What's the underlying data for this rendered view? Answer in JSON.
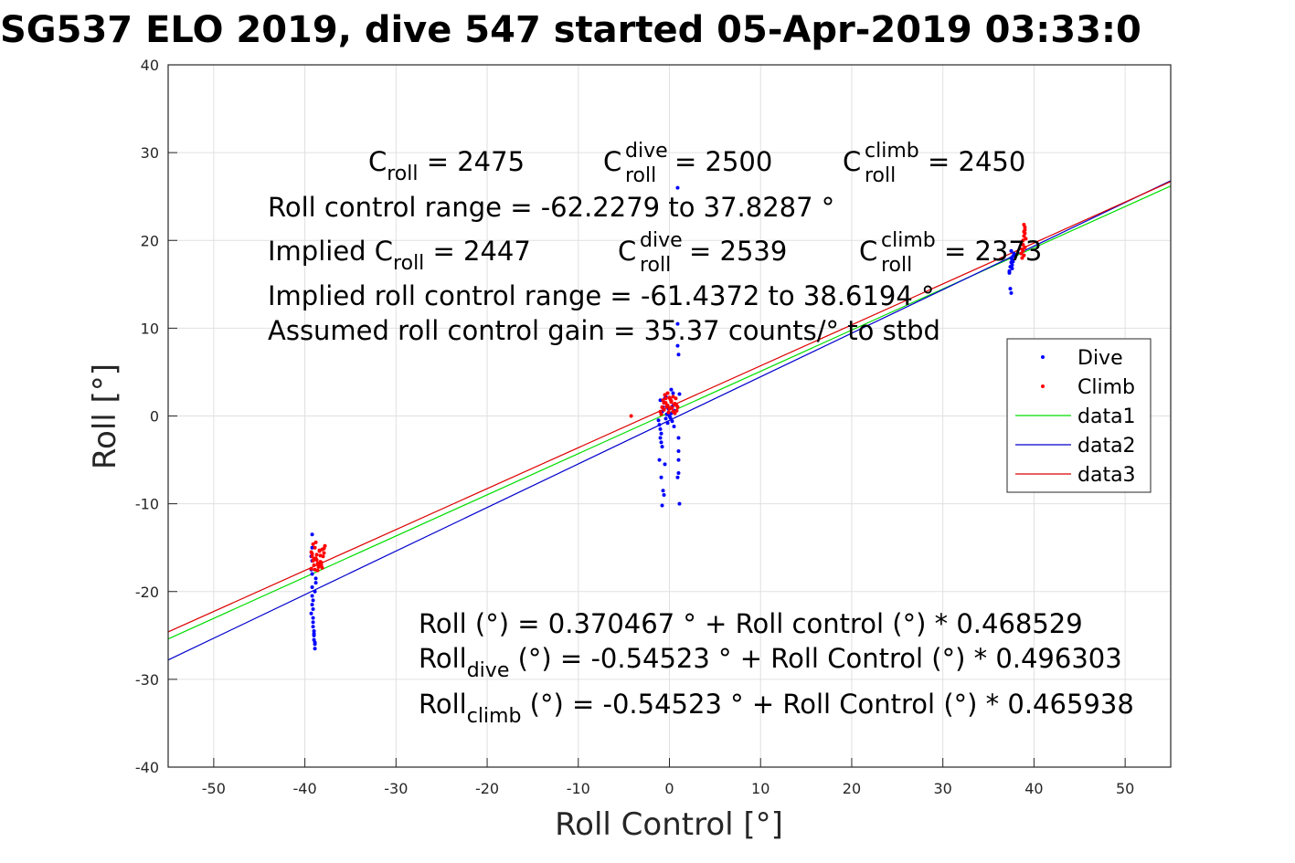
{
  "chart_data": {
    "type": "scatter",
    "title": "SG537 ELO 2019, dive 547 started 05-Apr-2019 03:33:0",
    "xlabel": "Roll Control [°]",
    "ylabel": "Roll [°]",
    "xlim": [
      -55,
      55
    ],
    "ylim": [
      -40,
      40
    ],
    "grid": true,
    "legend_position": "right",
    "xticks": [
      -50,
      -40,
      -30,
      -20,
      -10,
      0,
      10,
      20,
      30,
      40,
      50
    ],
    "yticks": [
      -40,
      -30,
      -20,
      -10,
      0,
      10,
      20,
      30,
      40
    ],
    "series": [
      {
        "name": "Dive",
        "kind": "points",
        "color": "#0000ff",
        "x": [
          -39.2,
          -39.2,
          -39.2,
          -39.2,
          -39.2,
          -39.2,
          -39.1,
          -39.1,
          -39.1,
          -39.1,
          -39.0,
          -39.0,
          -39.0,
          -38.9,
          -38.9,
          -38.9,
          -38.8,
          -38.8,
          -39.3,
          -39.3,
          -39.3,
          -39.2,
          -39.1,
          -39.0,
          -38.9,
          -1.2,
          -1.1,
          -1.0,
          -0.9,
          -0.8,
          -0.7,
          -0.6,
          -0.5,
          -0.4,
          -0.3,
          -0.2,
          -0.1,
          0.0,
          0.1,
          0.2,
          0.3,
          0.4,
          0.5,
          0.6,
          -1.0,
          -0.8,
          -1.1,
          -0.9,
          -0.7,
          0.9,
          0.9,
          0.9,
          1.0,
          1.0,
          1.0,
          1.0,
          1.0,
          0.9,
          1.1,
          1.1,
          -0.8,
          -0.6,
          -0.5,
          -0.9,
          -1.0,
          -0.4,
          0.2,
          0.4,
          37.3,
          37.4,
          37.5,
          37.5,
          37.6,
          37.6,
          37.7,
          37.4,
          37.5,
          37.6,
          37.8,
          37.3,
          37.7,
          37.5
        ],
        "y": [
          -13.5,
          -15.0,
          -16.5,
          -18.0,
          -19.5,
          -20.5,
          -21.0,
          -22.0,
          -23.0,
          -24.0,
          -24.5,
          -25.0,
          -25.5,
          -26.0,
          -26.5,
          -20.0,
          -19.0,
          -18.5,
          -17.5,
          -16.0,
          -22.5,
          -21.5,
          -23.5,
          -24.8,
          -25.8,
          -0.5,
          -1.0,
          -1.5,
          -2.0,
          0.5,
          1.0,
          1.5,
          2.0,
          -0.3,
          0.2,
          -0.8,
          0.8,
          0.0,
          -0.2,
          0.3,
          -0.6,
          1.2,
          -1.2,
          0.6,
          -2.5,
          -3.5,
          -5.0,
          -7.0,
          -8.5,
          26.0,
          10.5,
          8.0,
          7.0,
          -2.5,
          -4.0,
          -5.0,
          -6.5,
          -7.0,
          -10.0,
          2.5,
          -10.2,
          -9.0,
          -5.5,
          -3.0,
          1.8,
          2.2,
          3.0,
          2.6,
          16.5,
          17.0,
          17.5,
          18.0,
          17.8,
          16.8,
          18.2,
          14.5,
          14.0,
          17.2,
          18.5,
          16.3,
          17.6,
          18.8
        ]
      },
      {
        "name": "Climb",
        "kind": "points",
        "color": "#ff0000",
        "x": [
          -39.3,
          -39.2,
          -39.1,
          -39.0,
          -38.9,
          -38.8,
          -38.7,
          -38.6,
          -38.5,
          -38.4,
          -38.3,
          -38.2,
          -38.1,
          -38.0,
          -37.9,
          -37.8,
          -39.3,
          -39.1,
          -38.9,
          -38.7,
          -38.5,
          -38.3,
          -38.1,
          -37.9,
          -39.2,
          -39.0,
          -38.8,
          -38.6,
          -38.4,
          -38.2,
          -4.2,
          -1.0,
          -0.8,
          -0.6,
          -0.4,
          -0.2,
          0.0,
          0.2,
          0.4,
          0.6,
          0.8,
          -0.9,
          -0.7,
          -0.5,
          -0.3,
          -0.1,
          0.1,
          0.3,
          0.5,
          0.7,
          0.9,
          -0.6,
          -0.2,
          0.2,
          0.6,
          -0.4,
          0.0,
          0.4,
          0.8,
          -0.8,
          38.6,
          38.7,
          38.8,
          38.8,
          38.9,
          38.9,
          39.0,
          39.0,
          39.1,
          38.7,
          38.8,
          38.9,
          39.0,
          38.6,
          38.9,
          39.0
        ],
        "y": [
          -15.5,
          -16.0,
          -16.5,
          -17.0,
          -17.5,
          -16.2,
          -15.8,
          -16.8,
          -17.2,
          -15.4,
          -16.6,
          -17.0,
          -15.2,
          -16.0,
          -15.6,
          -14.8,
          -17.4,
          -14.6,
          -15.0,
          -16.4,
          -16.9,
          -15.9,
          -17.3,
          -15.1,
          -15.7,
          -16.3,
          -14.4,
          -17.6,
          -15.3,
          -16.7,
          0.0,
          0.5,
          1.0,
          1.5,
          2.0,
          1.2,
          0.8,
          1.6,
          2.2,
          1.4,
          0.6,
          0.2,
          1.8,
          2.4,
          1.1,
          0.4,
          1.9,
          0.9,
          1.3,
          2.0,
          1.0,
          0.7,
          2.6,
          1.7,
          0.3,
          1.5,
          2.1,
          0.5,
          1.2,
          1.0,
          18.5,
          19.0,
          19.5,
          20.0,
          20.5,
          21.0,
          21.5,
          19.2,
          20.2,
          18.0,
          18.8,
          21.8,
          20.8,
          19.8,
          18.3,
          21.2
        ]
      },
      {
        "name": "data1",
        "kind": "line",
        "color": "#00dd00",
        "x": [
          -55,
          55
        ],
        "y": [
          -25.4,
          26.2
        ]
      },
      {
        "name": "data2",
        "kind": "line",
        "color": "#0000cc",
        "x": [
          -55,
          55
        ],
        "y": [
          -27.8,
          26.8
        ]
      },
      {
        "name": "data3",
        "kind": "line",
        "color": "#dd0000",
        "x": [
          -55,
          55
        ],
        "y": [
          -24.6,
          26.7
        ]
      }
    ],
    "annotations": {
      "line1": {
        "p1_a": "C",
        "p1_sub": "roll",
        "p1_b": " = 2475",
        "p2_a": "C",
        "p2_sup": "dive",
        "p2_sub": "roll",
        "p2_b": " = 2500",
        "p3_a": "C",
        "p3_sup": "climb",
        "p3_sub": "roll",
        "p3_b": " = 2450"
      },
      "line2": "Roll control range = -62.2279 to 37.8287 °",
      "line3": {
        "p1_a": "Implied C",
        "p1_sub": "roll",
        "p1_b": " = 2447",
        "p2_a": "C",
        "p2_sup": "dive",
        "p2_sub": "roll",
        "p2_b": " = 2539",
        "p3_a": "C",
        "p3_sup": "climb",
        "p3_sub": "roll",
        "p3_b": " = 2373"
      },
      "line4": "Implied roll control range = -61.4372 to 38.6194 °",
      "line5": "Assumed roll control gain = 35.37 counts/° to stbd",
      "fit1": "Roll (°) = 0.370467 ° + Roll control (°) * 0.468529",
      "fit2": {
        "a": "Roll",
        "sub": "dive",
        "b": " (°) = -0.54523 ° + Roll Control (°) * 0.496303"
      },
      "fit3": {
        "a": "Roll",
        "sub": "climb",
        "b": " (°) = -0.54523 ° + Roll Control (°) * 0.465938"
      }
    }
  }
}
